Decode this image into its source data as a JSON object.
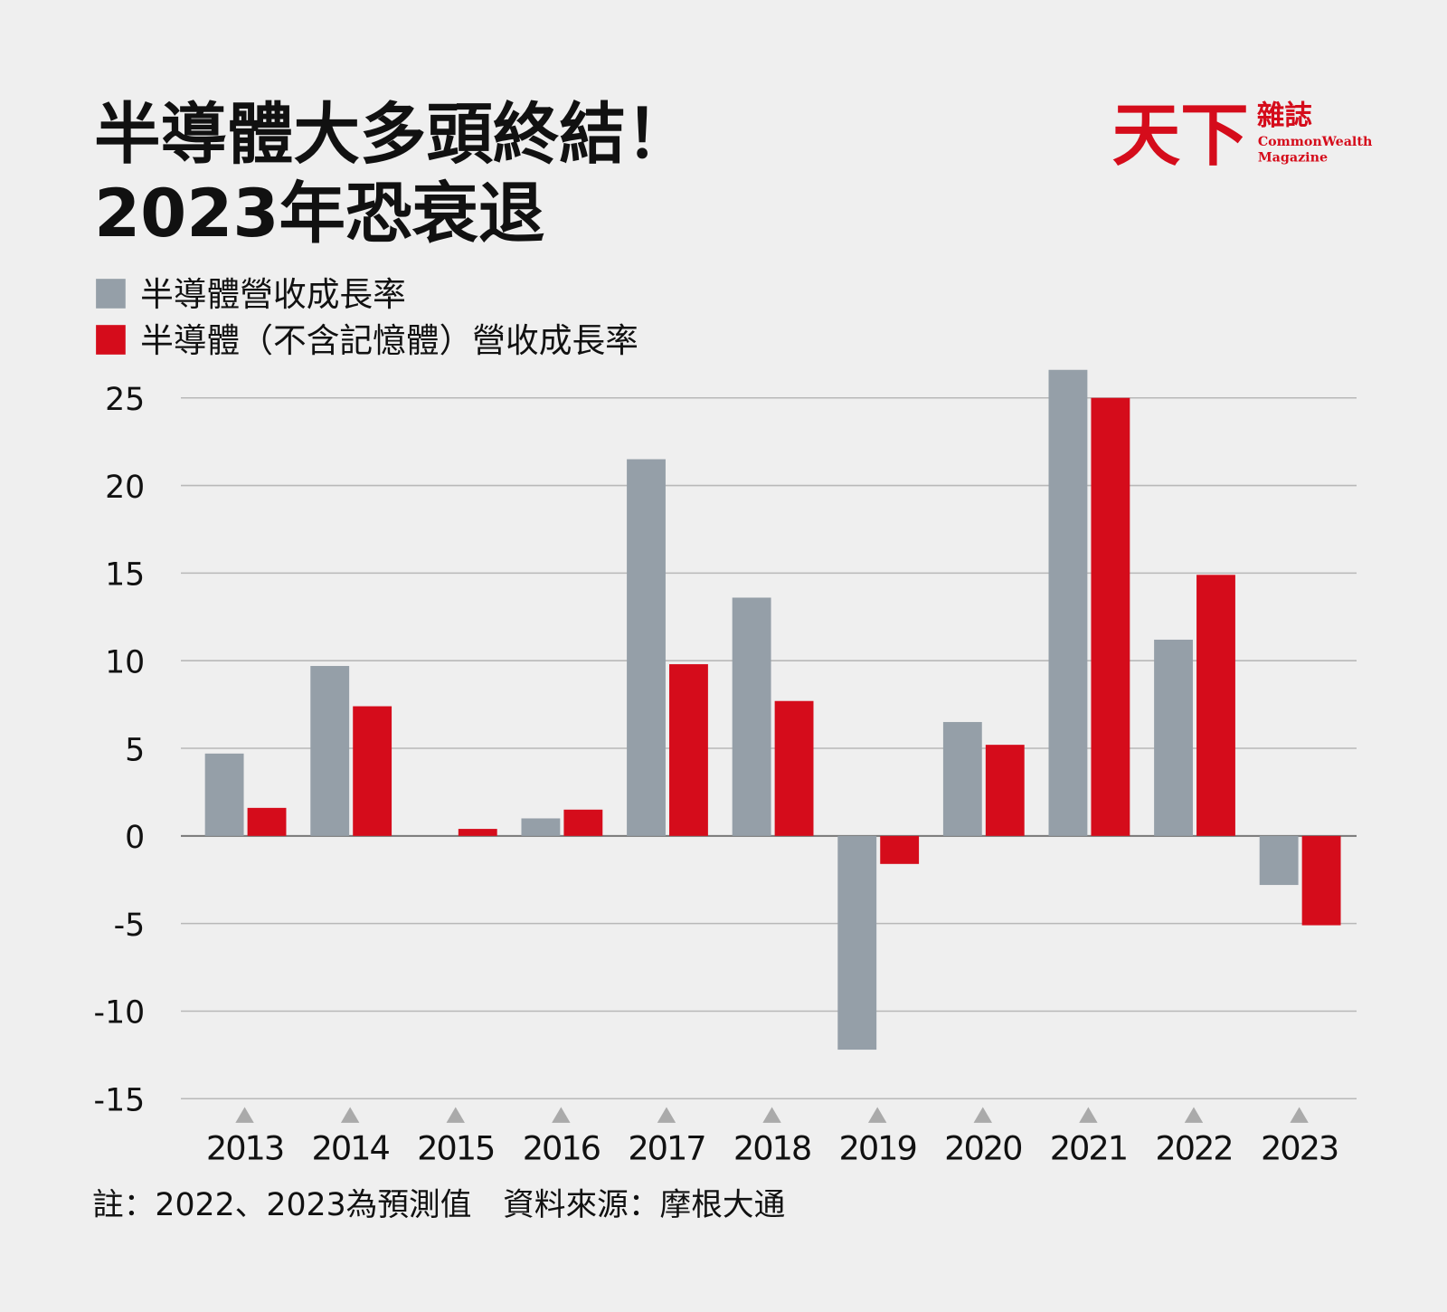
{
  "chart_data": {
    "type": "bar",
    "title": [
      "半導體大多頭終結！",
      "2023年恐衰退"
    ],
    "brand": {
      "name": "天下",
      "subname": "雜誌",
      "english": [
        "CommonWealth",
        "Magazine"
      ]
    },
    "categories": [
      "2013",
      "2014",
      "2015",
      "2016",
      "2017",
      "2018",
      "2019",
      "2020",
      "2021",
      "2022",
      "2023"
    ],
    "series": [
      {
        "name": "半導體營收成長率",
        "color": "#959fa8",
        "values": [
          4.7,
          9.7,
          0,
          1.0,
          21.5,
          13.6,
          -12.2,
          6.5,
          26.6,
          11.2,
          -2.8
        ]
      },
      {
        "name": "半導體（不含記憶體）營收成長率",
        "color": "#d50c1b",
        "values": [
          1.6,
          7.4,
          0.4,
          1.5,
          9.8,
          7.7,
          -1.6,
          5.2,
          25.0,
          14.9,
          -5.1
        ]
      }
    ],
    "ylim": [
      -15,
      27
    ],
    "yticks": [
      -15,
      -10,
      -5,
      0,
      5,
      10,
      15,
      20,
      25
    ],
    "grid": true,
    "note": "註：2022、2023為預測值　資料來源：摩根大通"
  }
}
